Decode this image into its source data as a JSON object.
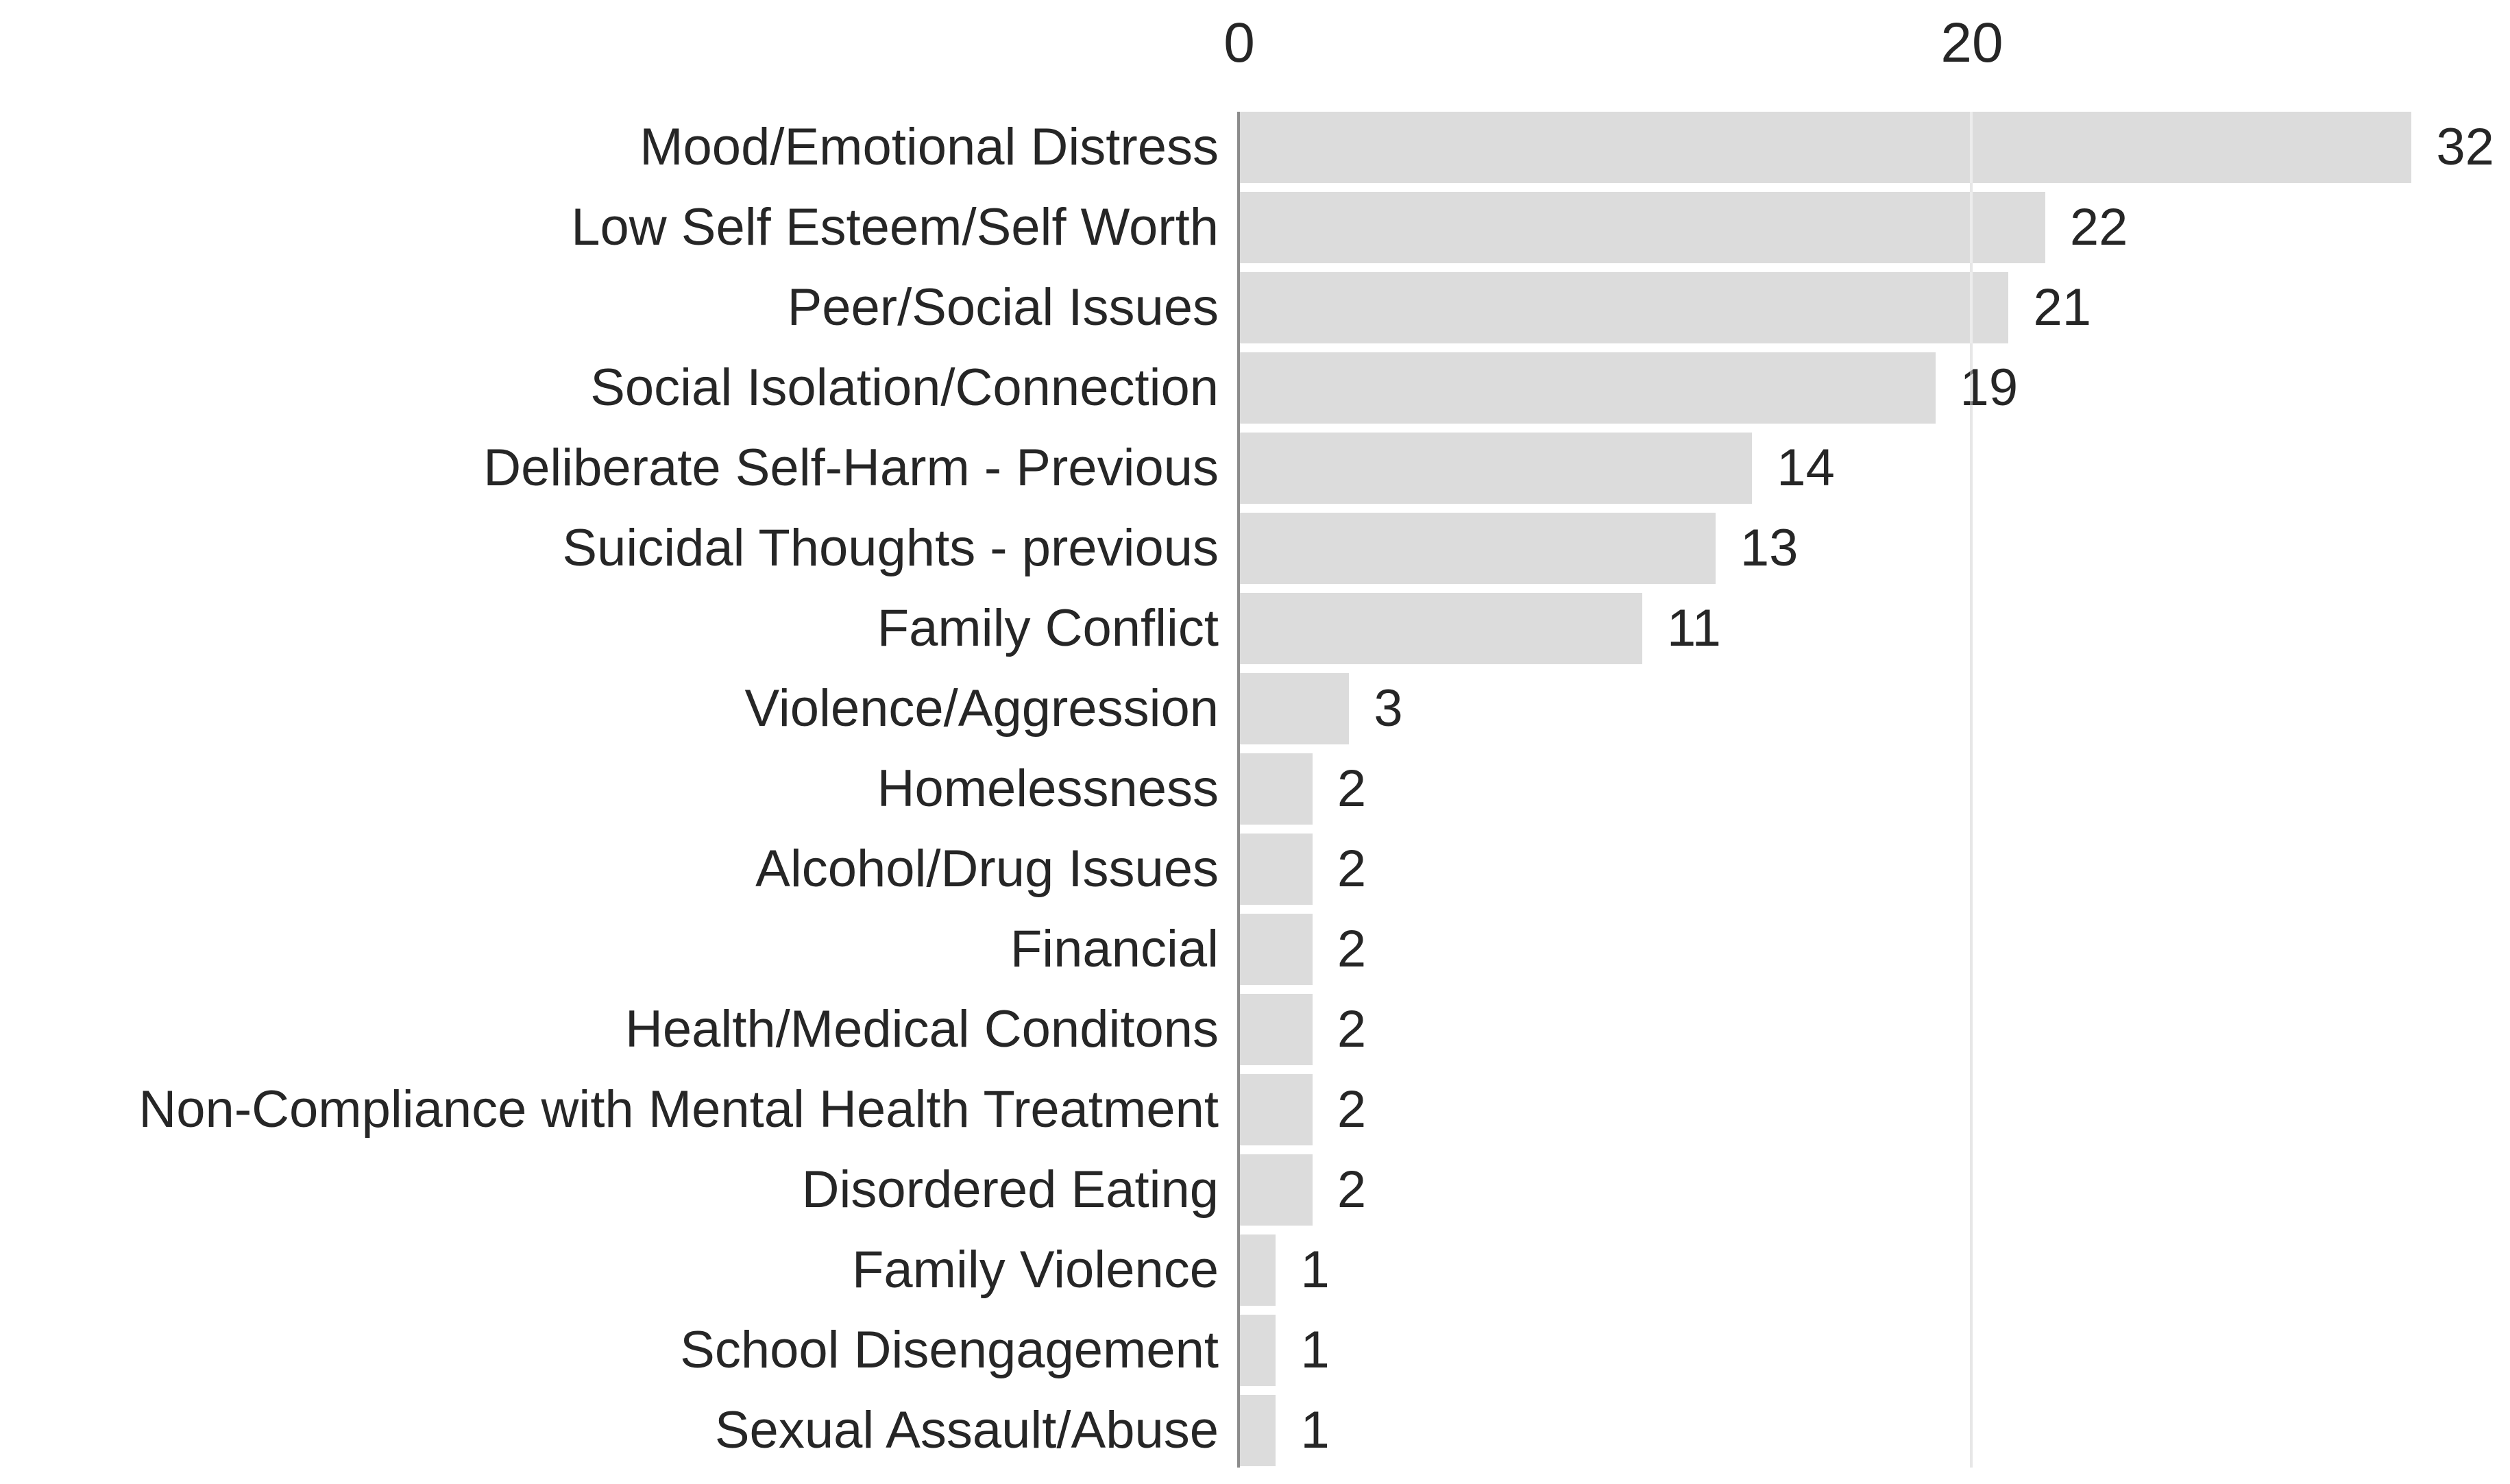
{
  "chart_data": {
    "type": "bar",
    "orientation": "horizontal",
    "title": "",
    "categories": [
      "Mood/Emotional Distress",
      "Low Self Esteem/Self Worth",
      "Peer/Social Issues",
      "Social Isolation/Connection",
      "Deliberate Self-Harm - Previous",
      "Suicidal Thoughts - previous",
      "Family Conflict",
      "Violence/Aggression",
      "Homelessness",
      "Alcohol/Drug Issues",
      "Financial",
      "Health/Medical Conditons",
      "Non-Compliance with Mental Health Treatment",
      "Disordered Eating",
      "Family Violence",
      "School Disengagement",
      "Sexual Assault/Abuse"
    ],
    "values": [
      32,
      22,
      21,
      19,
      14,
      13,
      11,
      3,
      2,
      2,
      2,
      2,
      2,
      2,
      1,
      1,
      1
    ],
    "value_labels_shown": true,
    "x_ticks": [
      "0",
      "20"
    ],
    "xlim": [
      0,
      34.7
    ],
    "grid": "x-gridline-at-20",
    "legend": "none",
    "bar_color": "#dcdcdc",
    "axis_line_color": "#8c8c8c",
    "gridline_color": "#d4d4d4",
    "text_color": "#262626"
  }
}
